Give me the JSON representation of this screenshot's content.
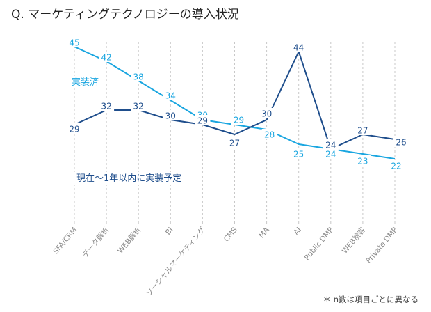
{
  "title": "Q. マーケティングテクノロジーの導入状況",
  "footnote": "＊ n数は項目ごとに異なる",
  "colors": {
    "implemented": "#1aa6e0",
    "planned": "#1f4e8c",
    "grid": "#c8c8c8",
    "tick": "#8a8a8a"
  },
  "chart_data": {
    "type": "line",
    "title": "Q. マーケティングテクノロジーの導入状況",
    "xlabel": "",
    "ylabel": "",
    "grid": "vertical dashed",
    "categories": [
      "SFA/CRM",
      "データ解析",
      "WEB解析",
      "BI",
      "ソーシャルマーケティング",
      "CMS",
      "MA",
      "AI",
      "Public DMP",
      "WEB接客",
      "Private DMP"
    ],
    "series": [
      {
        "name": "実装済",
        "color": "#1aa6e0",
        "values": [
          45,
          42,
          38,
          34,
          30,
          29,
          28,
          25,
          24,
          23,
          22
        ]
      },
      {
        "name": "現在〜1年以内に実装予定",
        "color": "#1f4e8c",
        "values": [
          29,
          32,
          32,
          30,
          29,
          27,
          30,
          44,
          24,
          27,
          26
        ]
      }
    ]
  }
}
